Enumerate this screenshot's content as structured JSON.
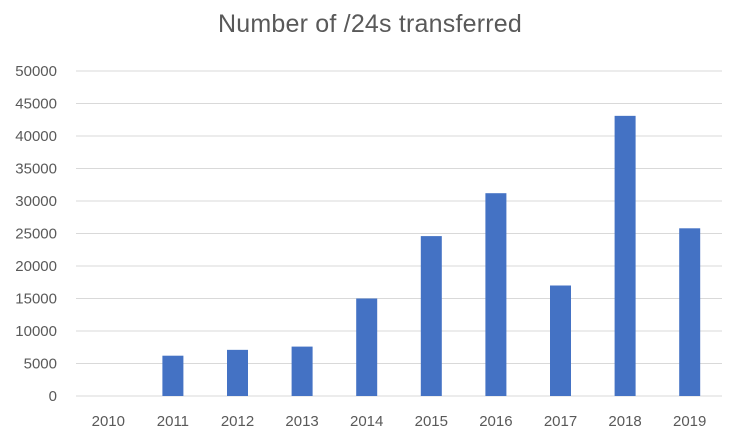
{
  "chart_data": {
    "type": "bar",
    "title": "Number of /24s transferred",
    "categories": [
      "2010",
      "2011",
      "2012",
      "2013",
      "2014",
      "2015",
      "2016",
      "2017",
      "2018",
      "2019"
    ],
    "values": [
      0,
      6200,
      7100,
      7600,
      15000,
      24600,
      31200,
      17000,
      43100,
      25800
    ],
    "ylim": [
      0,
      50000
    ],
    "yticks": [
      "0",
      "5000",
      "10000",
      "15000",
      "20000",
      "25000",
      "30000",
      "35000",
      "40000",
      "45000",
      "50000"
    ],
    "xlabel": "",
    "ylabel": "",
    "grid": true,
    "bar_color": "#4472C4",
    "grid_color": "#D9D9D9"
  }
}
